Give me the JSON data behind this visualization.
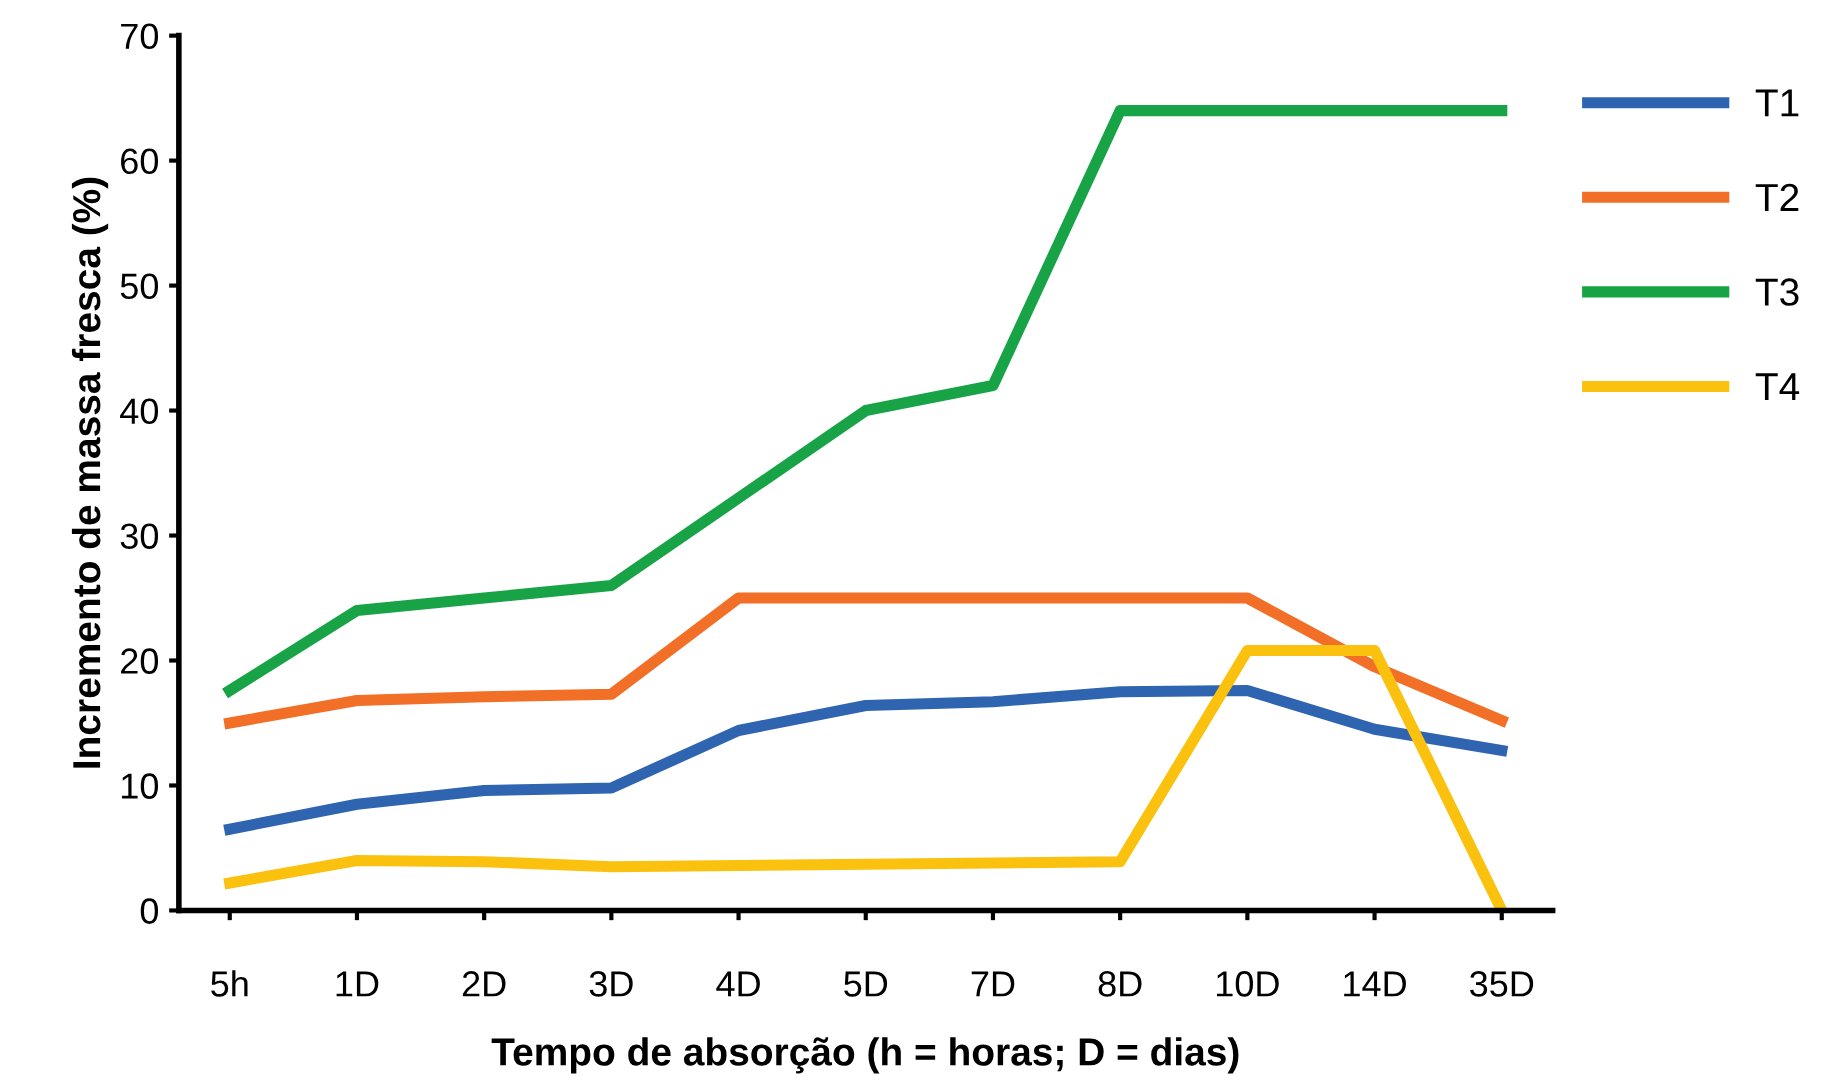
{
  "chart_data": {
    "type": "line",
    "xlabel": "Tempo de absorção (h = horas; D = dias)",
    "ylabel": "Incremento de massa fresca (%)",
    "categories": [
      "5h",
      "1D",
      "2D",
      "3D",
      "4D",
      "5D",
      "7D",
      "8D",
      "10D",
      "14D",
      "35D"
    ],
    "series": [
      {
        "name": "T1",
        "color": "#2e64b0",
        "values": [
          6.5,
          8.5,
          9.6,
          9.8,
          14.4,
          16.4,
          16.7,
          17.5,
          17.6,
          14.5,
          12.8
        ]
      },
      {
        "name": "T2",
        "color": "#f26f27",
        "values": [
          15.0,
          16.8,
          17.1,
          17.3,
          25.0,
          25.0,
          25.0,
          25.0,
          25.0,
          19.5,
          15.2
        ]
      },
      {
        "name": "T3",
        "color": "#17a346",
        "values": [
          17.6,
          24.0,
          25.0,
          26.0,
          33.0,
          40.0,
          42.0,
          64.0,
          64.0,
          64.0,
          64.0
        ]
      },
      {
        "name": "T4",
        "color": "#fbc10f",
        "values": [
          2.2,
          4.0,
          3.9,
          3.5,
          3.6,
          3.7,
          3.8,
          3.9,
          20.8,
          20.8,
          0.0
        ]
      }
    ],
    "ylim": [
      0,
      70
    ],
    "yticks": [
      0,
      10,
      20,
      30,
      40,
      50,
      60,
      70
    ],
    "grid": false,
    "legend": "right",
    "marker": "none",
    "line_style": "solid"
  }
}
